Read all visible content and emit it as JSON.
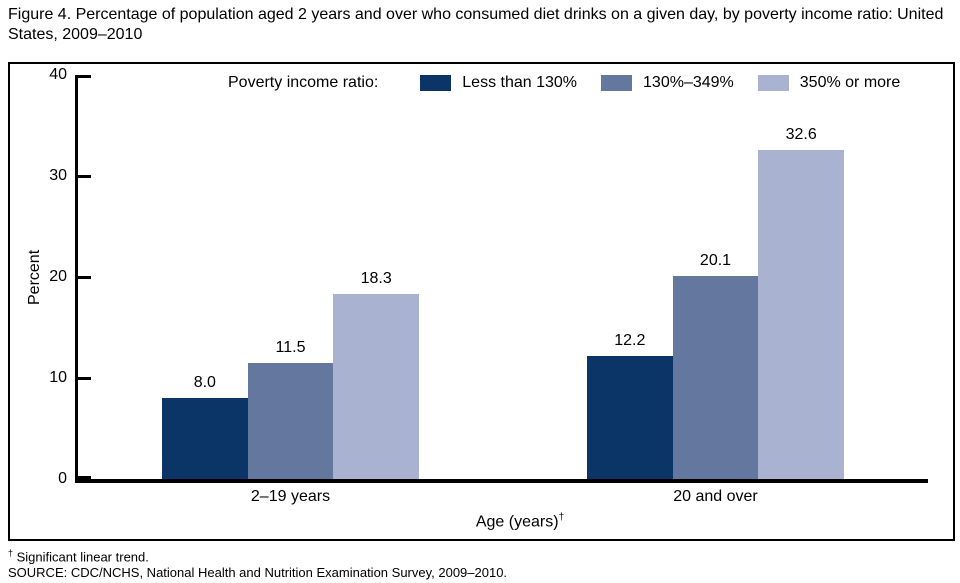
{
  "title": "Figure 4. Percentage of population aged 2 years and over who consumed diet drinks on a given day, by poverty income ratio: United States, 2009–2010",
  "chart_data": {
    "type": "bar",
    "categories": [
      "2–19 years",
      "20 and over"
    ],
    "series": [
      {
        "name": "Less than 130%",
        "color": "#0b3566",
        "values": [
          8.0,
          12.2
        ]
      },
      {
        "name": "130%–349%",
        "color": "#64779e",
        "values": [
          11.5,
          20.1
        ]
      },
      {
        "name": "350% or more",
        "color": "#a9b3d1",
        "values": [
          18.3,
          32.6
        ]
      }
    ],
    "legend_title": "Poverty income ratio:",
    "legend_position": "top",
    "xlabel": "Age (years)",
    "xlabel_sup": "†",
    "ylabel": "Percent",
    "ylim": [
      0,
      40
    ],
    "yticks": [
      0,
      10,
      20,
      30,
      40
    ],
    "grid": false,
    "value_label_decimals": 1
  },
  "footnotes": {
    "dagger": "†",
    "note": " Significant linear trend.",
    "source": "SOURCE: CDC/NCHS, National Health and Nutrition Examination Survey, 2009–2010."
  }
}
